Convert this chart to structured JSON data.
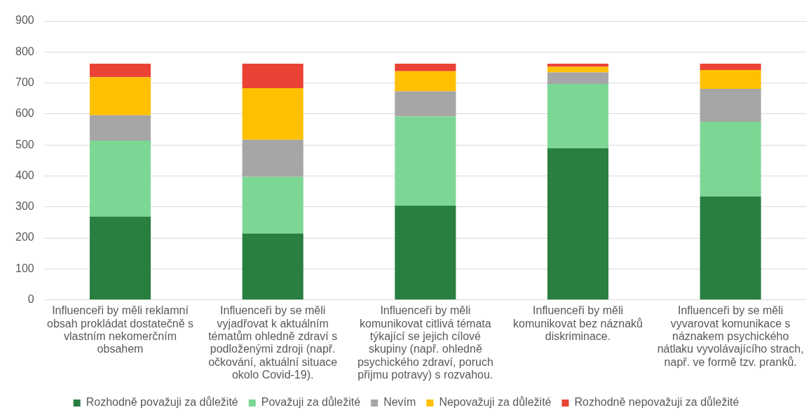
{
  "chart_data": {
    "type": "bar",
    "stacked": true,
    "categories": [
      "Influenceři by měli reklamní obsah prokládat dostatečně s vlastním nekomerčním obsahem",
      "Influenceři by se měli vyjadřovat k aktuálním tématům ohledně zdraví s podloženými zdroji (např. očkování, aktuální situace okolo Covid-19).",
      "Influenceři by měli komunikovat citlivá témata týkající se jejich cílové skupiny (např. ohledně psychického zdraví, poruch přijmu potravy) s rozvahou.",
      "Influenceři by měli komunikovat bez náznaků diskriminace.",
      "Influenceři by se měli vyvarovat komunikace s náznakem psychického nátlaku vyvolávajícího strach, např. ve formě tzv. pranků."
    ],
    "series": [
      {
        "name": "Rozhodně považuji za důležité",
        "color": "#297f40",
        "values": [
          269,
          214,
          304,
          489,
          334
        ]
      },
      {
        "name": "Považuji za důležité",
        "color": "#7dd794",
        "values": [
          245,
          183,
          288,
          208,
          241
        ]
      },
      {
        "name": "Nevím",
        "color": "#a6a6a6",
        "values": [
          82,
          120,
          81,
          37,
          106
        ]
      },
      {
        "name": "Nepovažuji za důležité",
        "color": "#ffc000",
        "values": [
          123,
          166,
          65,
          18,
          61
        ]
      },
      {
        "name": "Rozhodně nepovažuji za důležité",
        "color": "#ea4335",
        "values": [
          43,
          79,
          24,
          10,
          20
        ]
      }
    ],
    "ylim": [
      0,
      900
    ],
    "yticks": [
      0,
      100,
      200,
      300,
      400,
      500,
      600,
      700,
      800,
      900
    ],
    "grid": "y",
    "legend": "bottom"
  }
}
